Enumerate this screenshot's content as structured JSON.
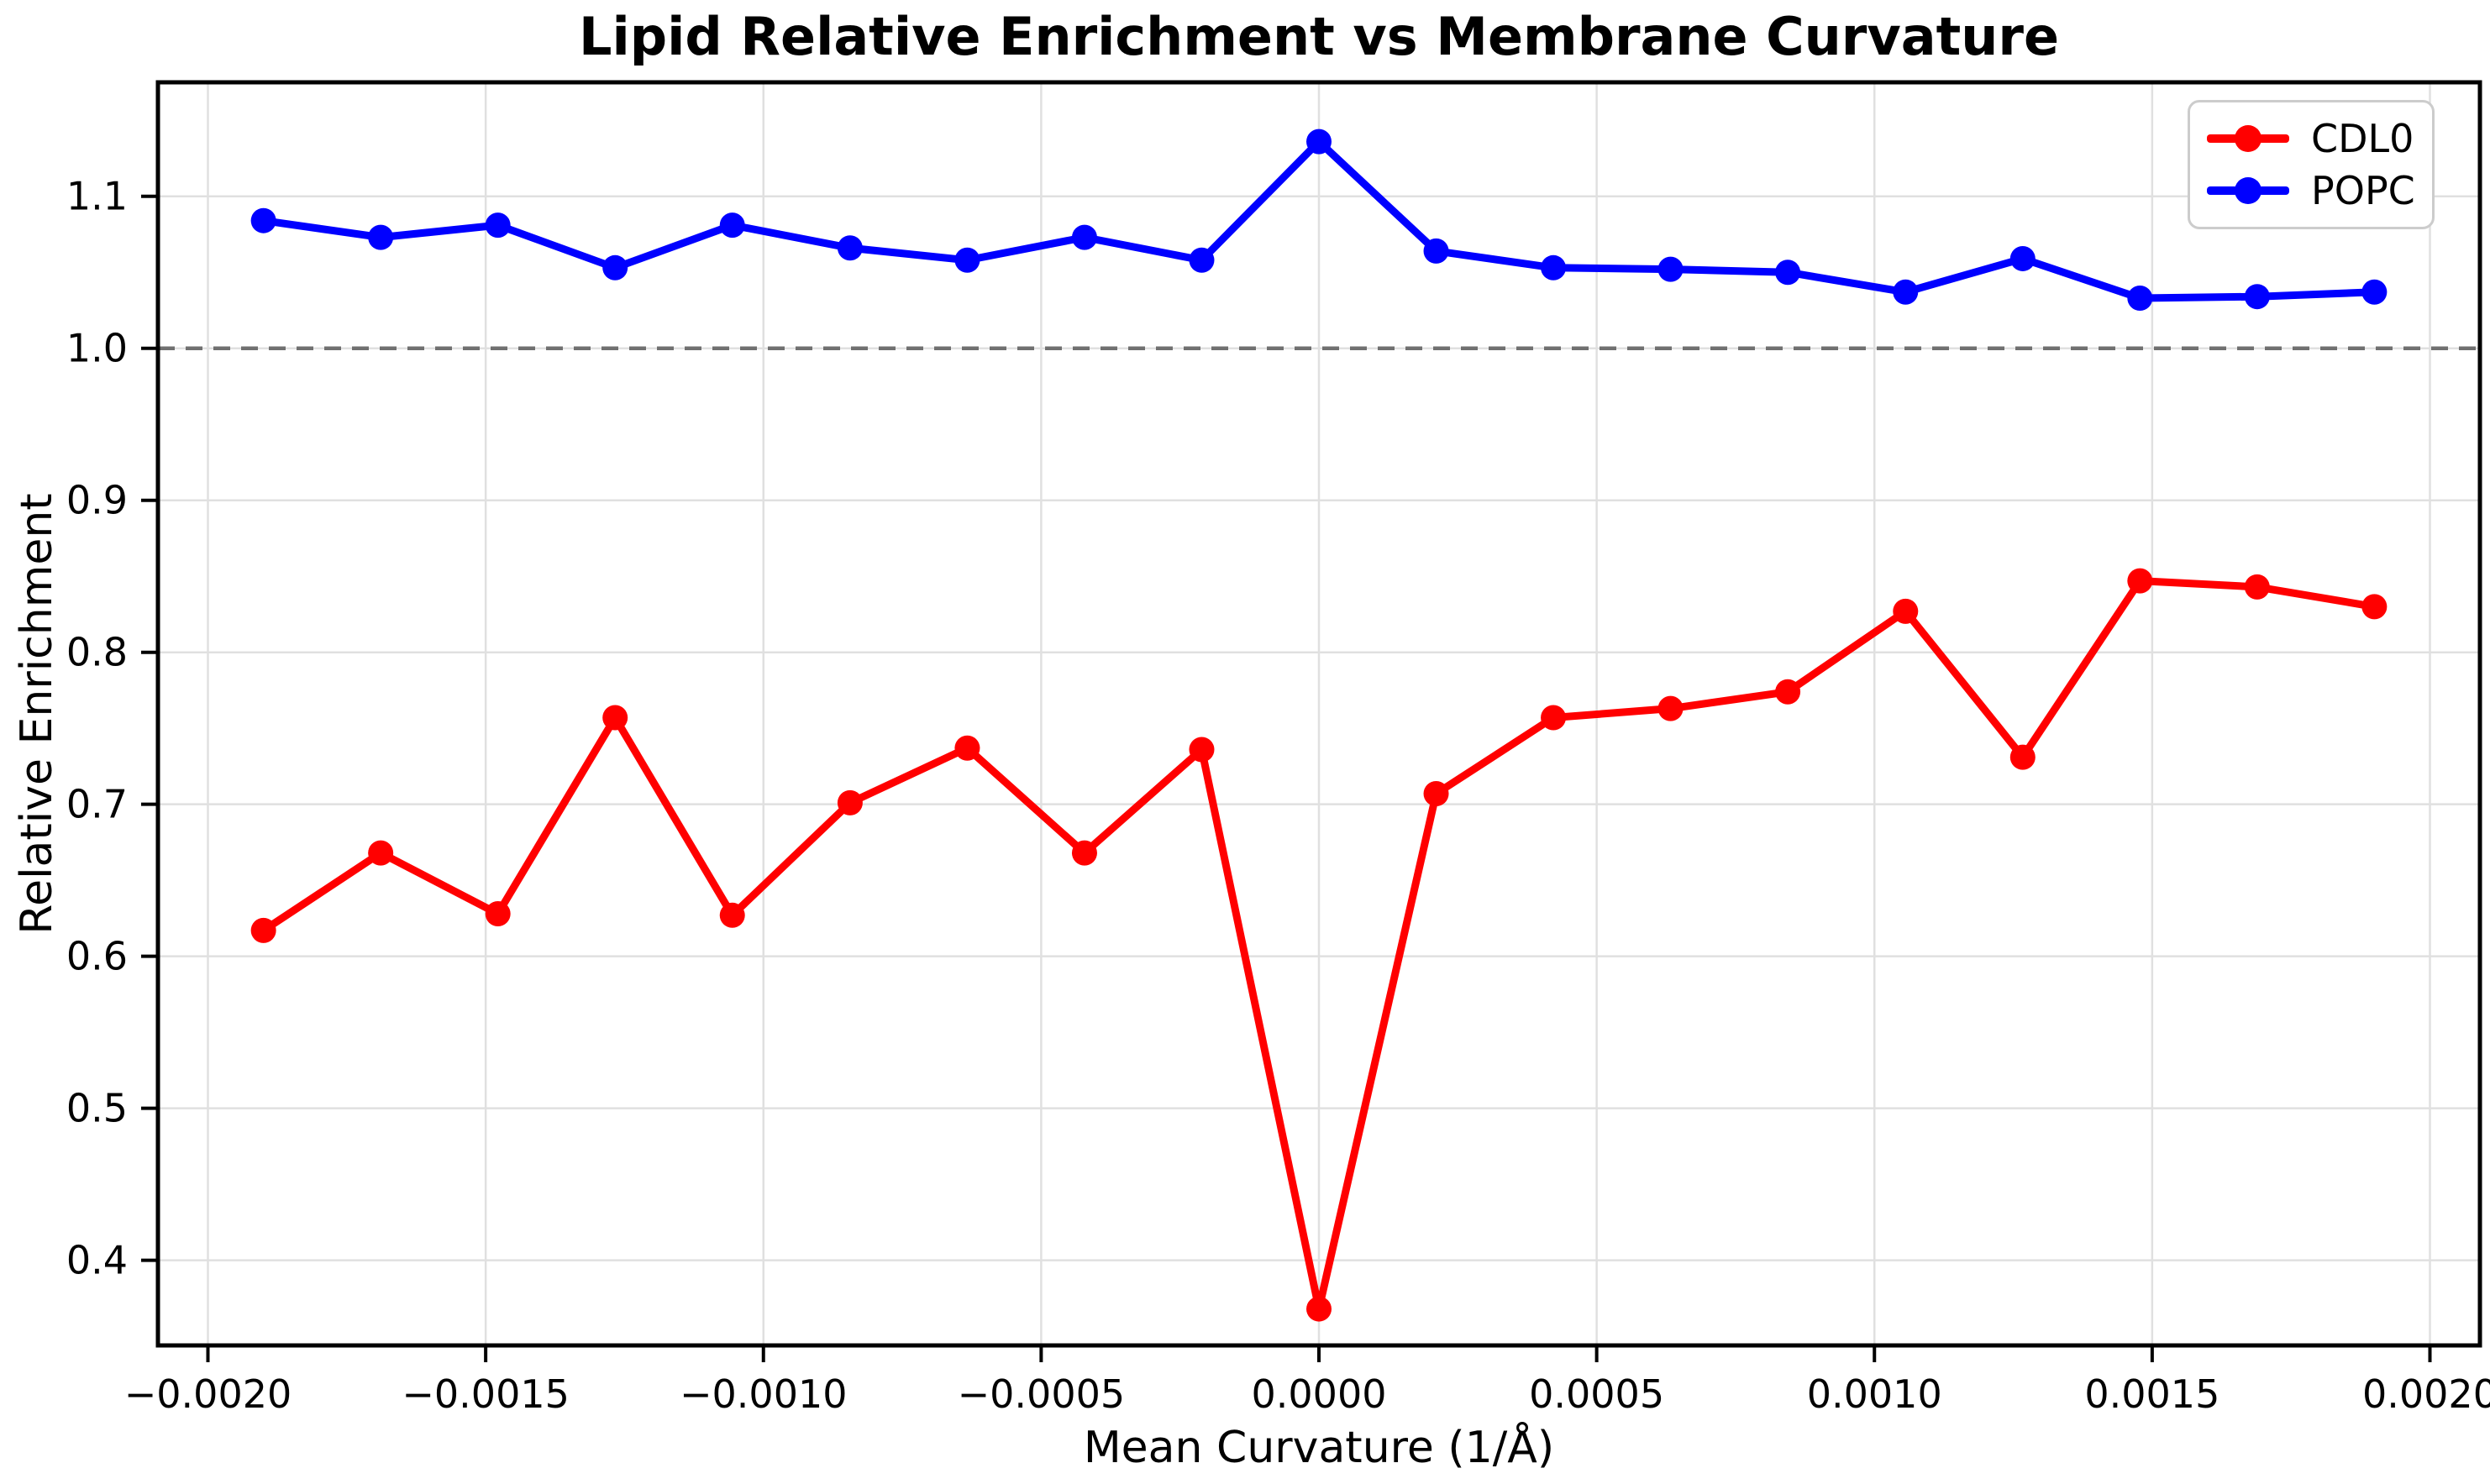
{
  "chart_data": {
    "type": "line",
    "title": "Lipid Relative Enrichment vs Membrane Curvature",
    "xlabel": "Mean Curvature (1/Å)",
    "ylabel": "Relative Enrichment",
    "grid": true,
    "legend_position": "upper right",
    "xlim": [
      -0.00209,
      0.00209
    ],
    "ylim": [
      0.344,
      1.175
    ],
    "x_ticks": [
      {
        "value": -0.002,
        "label": "−0.0020"
      },
      {
        "value": -0.0015,
        "label": "−0.0015"
      },
      {
        "value": -0.001,
        "label": "−0.0010"
      },
      {
        "value": -0.0005,
        "label": "−0.0005"
      },
      {
        "value": 0.0,
        "label": "0.0000"
      },
      {
        "value": 0.0005,
        "label": "0.0005"
      },
      {
        "value": 0.001,
        "label": "0.0010"
      },
      {
        "value": 0.0015,
        "label": "0.0015"
      },
      {
        "value": 0.002,
        "label": "0.0020"
      }
    ],
    "y_ticks": [
      {
        "value": 0.4,
        "label": "0.4"
      },
      {
        "value": 0.5,
        "label": "0.5"
      },
      {
        "value": 0.6,
        "label": "0.6"
      },
      {
        "value": 0.7,
        "label": "0.7"
      },
      {
        "value": 0.8,
        "label": "0.8"
      },
      {
        "value": 0.9,
        "label": "0.9"
      },
      {
        "value": 1.0,
        "label": "1.0"
      },
      {
        "value": 1.1,
        "label": "1.1"
      }
    ],
    "reference_line": {
      "y": 1.0,
      "style": "dashed",
      "color": "#707070"
    },
    "grid_color": "#e0e0e0",
    "x": [
      -0.0019,
      -0.001689,
      -0.001478,
      -0.001267,
      -0.001056,
      -0.000844,
      -0.000633,
      -0.000422,
      -0.000211,
      0.0,
      0.000211,
      0.000422,
      0.000633,
      0.000844,
      0.001056,
      0.001267,
      0.001478,
      0.001689,
      0.0019
    ],
    "series": [
      {
        "name": "CDL0",
        "color": "#ff0000",
        "values": [
          0.617,
          0.668,
          0.628,
          0.757,
          0.627,
          0.701,
          0.737,
          0.668,
          0.736,
          0.368,
          0.707,
          0.757,
          0.763,
          0.774,
          0.827,
          0.731,
          0.847,
          0.843,
          0.83
        ]
      },
      {
        "name": "POPC",
        "color": "#0000ff",
        "values": [
          1.084,
          1.073,
          1.081,
          1.053,
          1.081,
          1.066,
          1.058,
          1.073,
          1.058,
          1.136,
          1.064,
          1.053,
          1.052,
          1.05,
          1.037,
          1.059,
          1.033,
          1.034,
          1.037
        ]
      }
    ]
  }
}
